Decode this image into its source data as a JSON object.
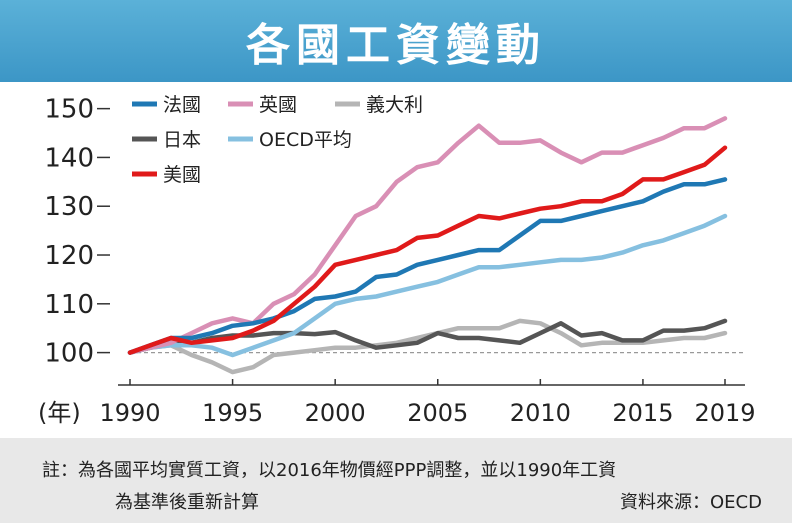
{
  "header": {
    "title": "各國工資變動"
  },
  "footer": {
    "note_line1": "註：為各國平均實質工資，以2016年物價經PPP調整，並以1990年工資",
    "note_line2": "為基準後重新計算",
    "source": "資料來源：OECD"
  },
  "colors": {
    "banner": "#4aa3d0",
    "france": "#1f78b4",
    "uk": "#d98fb5",
    "italy": "#b5b5b5",
    "japan": "#555555",
    "oecd": "#86c0e0",
    "usa": "#e01a1a",
    "footer_bg": "#e8e8e8"
  },
  "chart_data": {
    "type": "line",
    "title": "各國工資變動",
    "xlabel": "(年)",
    "ylabel": "",
    "x_prefix_label": "(年)",
    "xlim": [
      1990,
      2019
    ],
    "ylim": [
      95,
      153
    ],
    "x_ticks": [
      1990,
      1995,
      2000,
      2005,
      2010,
      2015,
      2019
    ],
    "y_ticks": [
      100,
      110,
      120,
      130,
      140,
      150
    ],
    "baseline": 100,
    "x": [
      1990,
      1991,
      1992,
      1993,
      1994,
      1995,
      1996,
      1997,
      1998,
      1999,
      2000,
      2001,
      2002,
      2003,
      2004,
      2005,
      2006,
      2007,
      2008,
      2009,
      2010,
      2011,
      2012,
      2013,
      2014,
      2015,
      2016,
      2017,
      2018,
      2019
    ],
    "legend": [
      {
        "name": "法國",
        "series": 0
      },
      {
        "name": "英國",
        "series": 1
      },
      {
        "name": "義大利",
        "series": 2
      },
      {
        "name": "日本",
        "series": 3
      },
      {
        "name": "OECD平均",
        "series": 4
      },
      {
        "name": "美國",
        "series": 5
      }
    ],
    "series": [
      {
        "name": "法國",
        "color": "#1f78b4",
        "values": [
          100,
          101.5,
          103,
          103,
          104,
          105.5,
          106,
          107,
          108.5,
          111,
          111.5,
          112.5,
          115.5,
          116,
          118,
          119,
          120,
          121,
          121,
          124,
          127,
          127,
          128,
          129,
          130,
          131,
          133,
          134.5,
          134.5,
          135.5
        ]
      },
      {
        "name": "英國",
        "color": "#d98fb5",
        "values": [
          100,
          101,
          102,
          104,
          106,
          107,
          106,
          110,
          112,
          116,
          122,
          128,
          130,
          135,
          138,
          139,
          143,
          146.5,
          143,
          143,
          143.5,
          141,
          139,
          141,
          141,
          142.5,
          144,
          146,
          146,
          148
        ]
      },
      {
        "name": "義大利",
        "color": "#b5b5b5",
        "values": [
          100,
          101,
          101.5,
          99.5,
          98,
          96,
          97,
          99.5,
          100,
          100.5,
          101,
          101,
          101.5,
          102,
          103,
          104,
          105,
          105,
          105,
          106.5,
          106,
          104,
          101.5,
          102,
          102,
          102,
          102.5,
          103,
          103,
          104
        ]
      },
      {
        "name": "日本",
        "color": "#555555",
        "values": [
          100,
          101,
          102,
          102,
          103,
          103.5,
          103.5,
          104,
          104,
          103.8,
          104.2,
          102.5,
          101,
          101.5,
          102,
          104,
          103,
          103,
          102.5,
          102,
          104,
          106,
          103.5,
          104,
          102.5,
          102.5,
          104.5,
          104.5,
          105,
          106.5
        ]
      },
      {
        "name": "OECD平均",
        "color": "#86c0e0",
        "values": [
          100,
          101,
          101.5,
          101.5,
          101,
          99.5,
          101,
          102.5,
          104,
          107,
          110,
          111,
          111.5,
          112.5,
          113.5,
          114.5,
          116,
          117.5,
          117.5,
          118,
          118.5,
          119,
          119,
          119.5,
          120.5,
          122,
          123,
          124.5,
          126,
          128
        ]
      },
      {
        "name": "美國",
        "color": "#e01a1a",
        "values": [
          100,
          101.5,
          103,
          102,
          102.5,
          103,
          104.5,
          106.5,
          110,
          113.5,
          118,
          119,
          120,
          121,
          123.5,
          124,
          126,
          128,
          127.5,
          128.5,
          129.5,
          130,
          131,
          131,
          132.5,
          135.5,
          135.5,
          137,
          138.5,
          142
        ]
      }
    ]
  }
}
